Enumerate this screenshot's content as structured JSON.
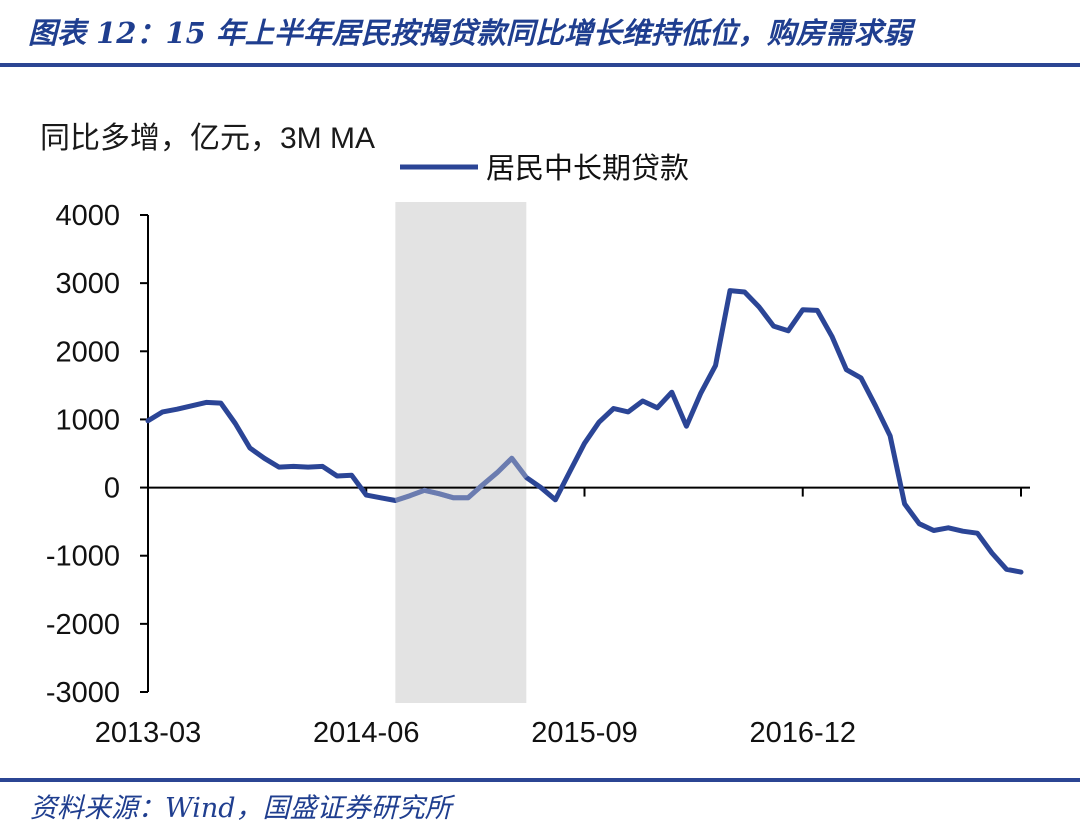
{
  "figure": {
    "title": "图表 12：15 年上半年居民按揭贷款同比增长维持低位，购房需求弱",
    "unit_note": "同比多增，亿元，3M MA",
    "source": "资料来源：Wind，国盛证券研究所"
  },
  "colors": {
    "series": "#2b4596",
    "highlight": "#e3e3e3",
    "rule": "#2b4593",
    "title": "#1f3e8f"
  },
  "chart_data": {
    "type": "line",
    "title": "",
    "xlabel": "",
    "ylabel": "同比多增，亿元，3M MA",
    "ylim": [
      -3000,
      4000
    ],
    "yticks": [
      "4000",
      "3000",
      "2000",
      "1000",
      "0",
      "-1000",
      "-2000",
      "-3000"
    ],
    "x_tick_labels": [
      "2013-03",
      "2014-06",
      "2015-09",
      "2016-12"
    ],
    "legend": "top-center",
    "grid": false,
    "shaded_region": {
      "from": "2014-08",
      "to": "2015-05"
    },
    "series": [
      {
        "name": "居民中长期贷款",
        "x": [
          "2013-03",
          "2013-04",
          "2013-05",
          "2013-06",
          "2013-07",
          "2013-08",
          "2013-09",
          "2013-10",
          "2013-11",
          "2013-12",
          "2014-01",
          "2014-02",
          "2014-03",
          "2014-04",
          "2014-05",
          "2014-06",
          "2014-07",
          "2014-08",
          "2014-09",
          "2014-10",
          "2014-11",
          "2014-12",
          "2015-01",
          "2015-02",
          "2015-03",
          "2015-04",
          "2015-05",
          "2015-06",
          "2015-07",
          "2015-08",
          "2015-09",
          "2015-10",
          "2015-11",
          "2015-12",
          "2016-01",
          "2016-02",
          "2016-03",
          "2016-04",
          "2016-05",
          "2016-06",
          "2016-07",
          "2016-08",
          "2016-09",
          "2016-10",
          "2016-11",
          "2016-12",
          "2017-01",
          "2017-02",
          "2017-03",
          "2017-04",
          "2017-05",
          "2017-06",
          "2017-07",
          "2017-08",
          "2017-09",
          "2017-10",
          "2017-11",
          "2017-12",
          "2018-01",
          "2018-02",
          "2018-03"
        ],
        "values": [
          980,
          1110,
          1150,
          1200,
          1250,
          1240,
          940,
          580,
          430,
          300,
          310,
          300,
          310,
          170,
          180,
          -110,
          -150,
          -190,
          -120,
          -40,
          -90,
          -150,
          -150,
          40,
          220,
          430,
          150,
          0,
          -180,
          240,
          650,
          960,
          1160,
          1110,
          1270,
          1170,
          1400,
          900,
          1390,
          1790,
          2890,
          2870,
          2650,
          2370,
          2300,
          2610,
          2600,
          2220,
          1730,
          1610,
          1200,
          760,
          -240,
          -530,
          -630,
          -590,
          -640,
          -670,
          -960,
          -1200,
          -1240
        ]
      }
    ]
  }
}
